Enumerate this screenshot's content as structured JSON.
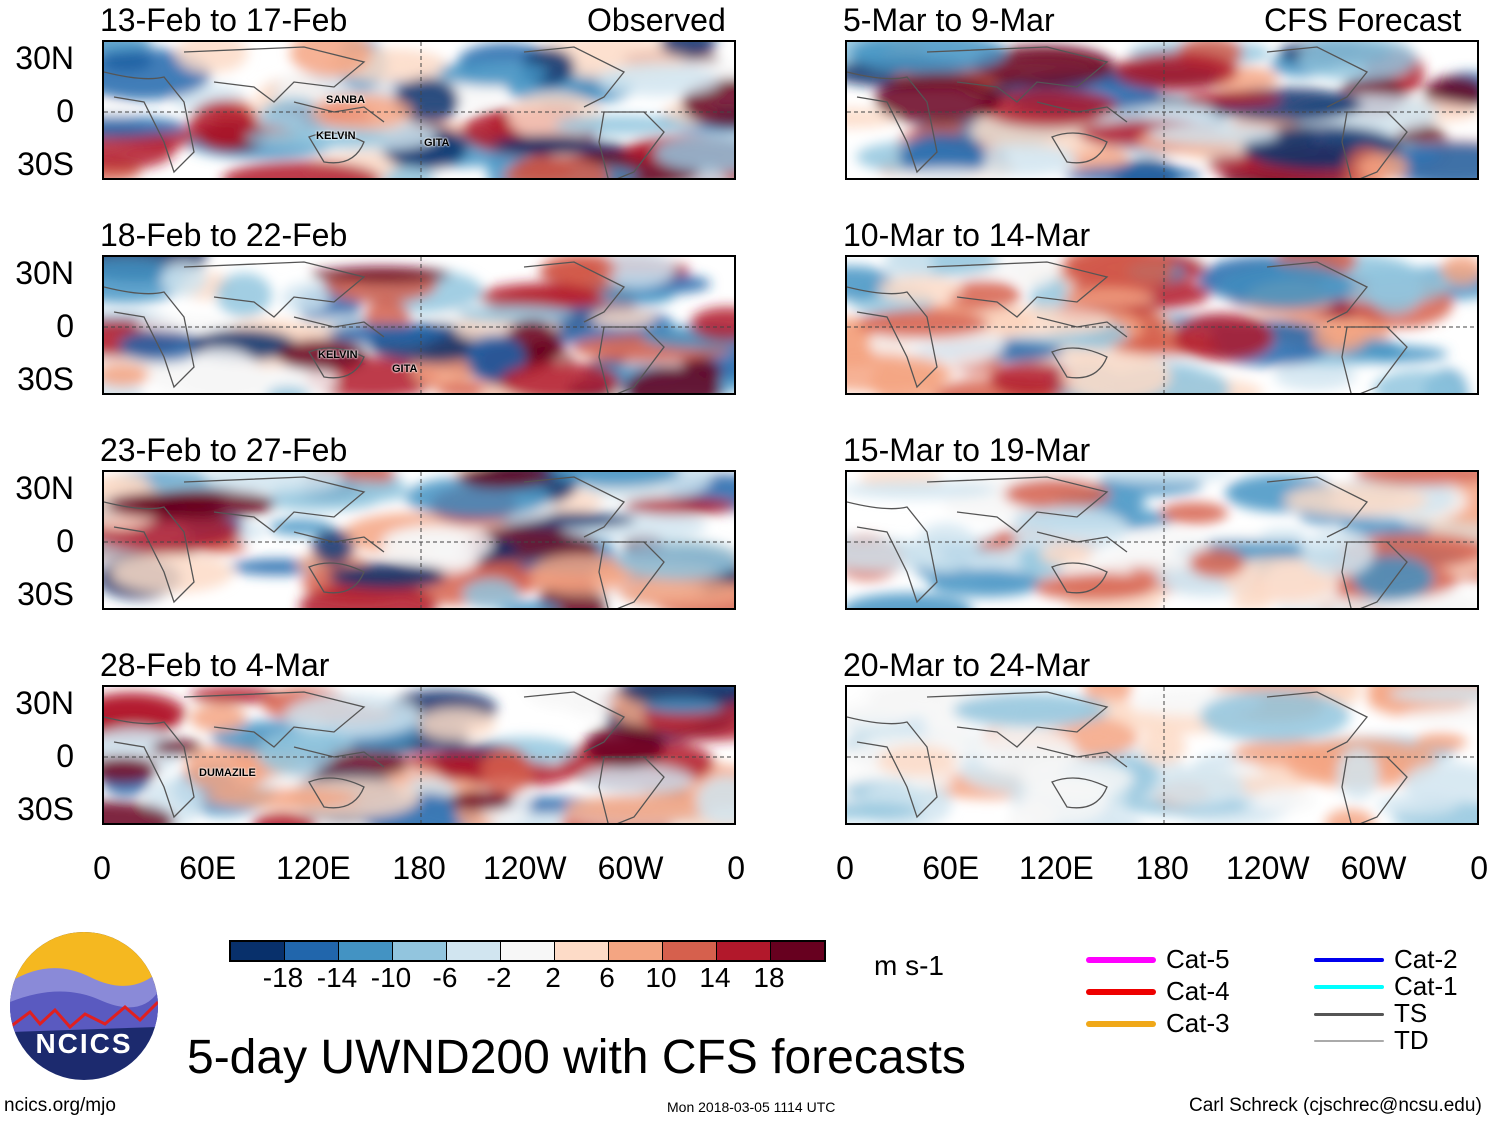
{
  "panels_left_header": "Observed",
  "panels_right_header": "CFS Forecast",
  "panels": [
    {
      "title": "13-Feb to 17-Feb",
      "side": "left",
      "storms": [
        "SANBA",
        "KELVIN",
        "GITA"
      ]
    },
    {
      "title": "18-Feb to 22-Feb",
      "side": "left",
      "storms": [
        "KELVIN",
        "GITA"
      ]
    },
    {
      "title": "23-Feb to 27-Feb",
      "side": "left",
      "storms": []
    },
    {
      "title": "28-Feb to 4-Mar",
      "side": "left",
      "storms": [
        "DUMAZILE"
      ]
    },
    {
      "title": "5-Mar to 9-Mar",
      "side": "right",
      "storms": []
    },
    {
      "title": "10-Mar to 14-Mar",
      "side": "right",
      "storms": []
    },
    {
      "title": "15-Mar to 19-Mar",
      "side": "right",
      "storms": []
    },
    {
      "title": "20-Mar to 24-Mar",
      "side": "right",
      "storms": []
    }
  ],
  "lat_labels": [
    "30N",
    "0",
    "30S"
  ],
  "lon_labels": [
    "0",
    "60E",
    "120E",
    "180",
    "120W",
    "60W",
    "0"
  ],
  "colorbar": {
    "colors": [
      "#08306b",
      "#2166ac",
      "#4393c3",
      "#92c5de",
      "#d1e5f0",
      "#f7f7f7",
      "#fddbc7",
      "#f4a582",
      "#d6604d",
      "#b2182b",
      "#67001f"
    ],
    "labels": [
      "-18",
      "-14",
      "-10",
      "-6",
      "-2",
      "2",
      "6",
      "10",
      "14",
      "18"
    ],
    "units": "m s-1"
  },
  "legend": [
    {
      "label": "Cat-5",
      "color": "#ff00ff"
    },
    {
      "label": "Cat-4",
      "color": "#ee0000"
    },
    {
      "label": "Cat-3",
      "color": "#f0a818"
    },
    {
      "label": "Cat-2",
      "color": "#0000ee"
    },
    {
      "label": "Cat-1",
      "color": "#00ffff"
    },
    {
      "label": "TS",
      "color": "#555555"
    },
    {
      "label": "TD",
      "color": "#aaaaaa"
    }
  ],
  "title": "5-day UWND200 with CFS forecasts",
  "logo_text": "NCICS",
  "footer": {
    "left": "ncics.org/mjo",
    "center": "Mon 2018-03-05 1114 UTC",
    "right": "Carl Schreck (cjschrec@ncsu.edu)"
  }
}
